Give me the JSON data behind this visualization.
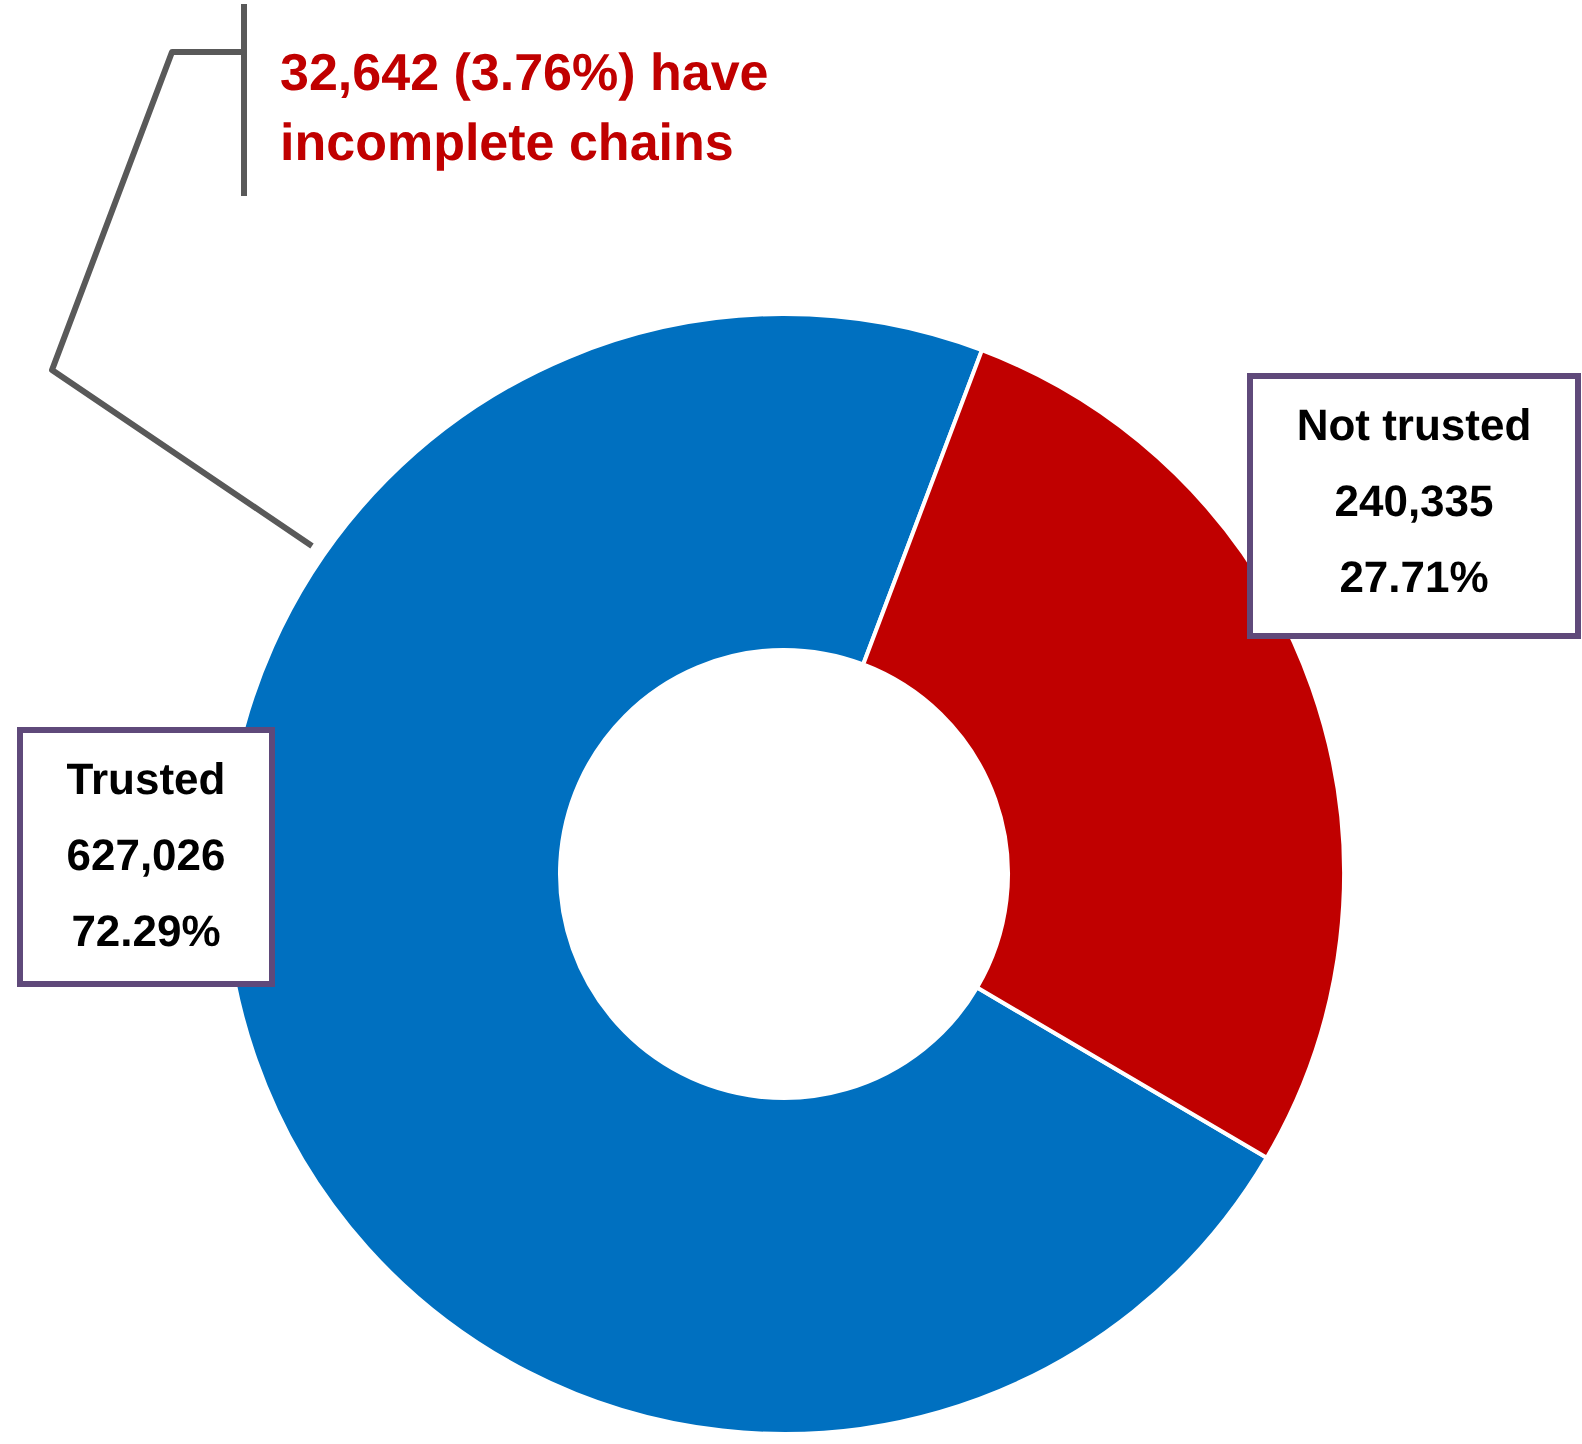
{
  "chart_data": {
    "type": "donut",
    "categories": [
      "Trusted",
      "Not trusted"
    ],
    "values": [
      627026,
      240335
    ],
    "colors": [
      "#0070c0",
      "#c00000"
    ],
    "value_labels": [
      "627,026\n72.29%",
      "240,335\n27.71%"
    ],
    "annotations": [
      "32,642 (3.76%) have\nincomplete chains"
    ]
  }
}
